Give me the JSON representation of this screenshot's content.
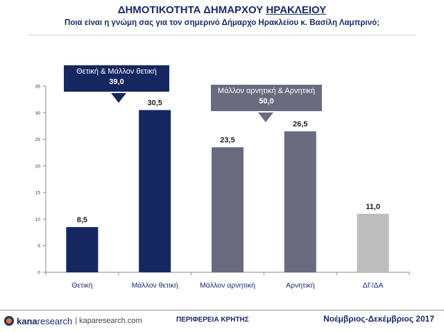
{
  "header": {
    "title_main": "ΔΗΜΟΤΙΚΟΤΗΤΑ ΔΗΜΑΡΧΟΥ ",
    "title_city": "ΗΡΑΚΛΕΙΟΥ",
    "subtitle": "Ποια είναι η γνώμη σας για τον σημερινό Δήμαρχο Ηρακλείου κ. Βασίλη Λαμπρινό;"
  },
  "callouts": {
    "positive_label": "Θετική & Μάλλον θετική",
    "positive_value": "39,0",
    "negative_label": "Μάλλον αρνητική & Αρνητική",
    "negative_value": "50,0"
  },
  "chart_data": {
    "type": "bar",
    "categories": [
      "Θετική",
      "Μάλλον θετική",
      "Μάλλον αρνητική",
      "Αρνητική",
      "ΔΓ/ΔΑ"
    ],
    "values": [
      8.5,
      30.5,
      23.5,
      26.5,
      11.0
    ],
    "value_labels": [
      "8,5",
      "30,5",
      "23,5",
      "26,5",
      "11,0"
    ],
    "colors": [
      "#152760",
      "#152760",
      "#6a6b7f",
      "#6a6b7f",
      "#bdbdbd"
    ],
    "yticks": [
      0,
      5,
      10,
      15,
      20,
      25,
      30,
      35
    ],
    "ylim": [
      0,
      35
    ],
    "grid": false
  },
  "footer": {
    "logo_kana": "kana",
    "logo_research": "research",
    "logo_site": "| kaparesearch.com",
    "region": "ΠΕΡΙΦΕΡΕΙΑ ΚΡΗΤΗΣ",
    "date": "Νοέμβριος-Δεκέμβριος 2017"
  }
}
